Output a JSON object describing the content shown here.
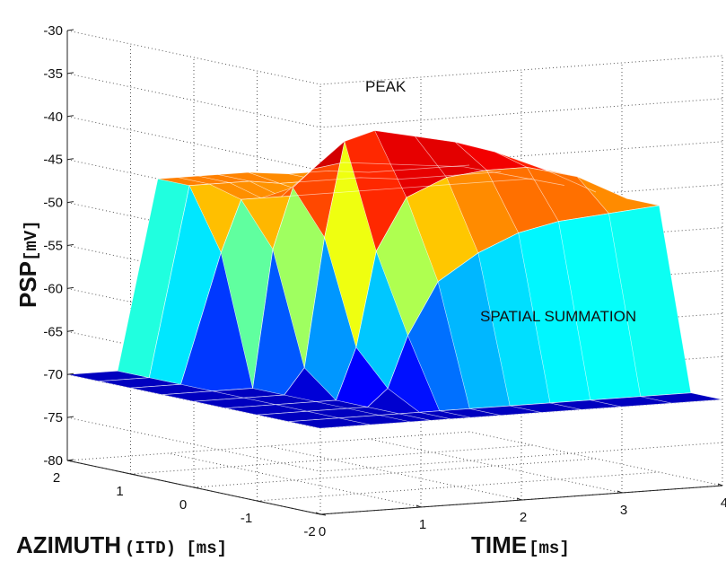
{
  "chart_data": {
    "type": "surface",
    "title": "",
    "xlabel": "TIME",
    "xlabel_unit": "[ms]",
    "ylabel": "AZIMUTH",
    "ylabel_unit": "(ITD) [ms]",
    "zlabel": "PSP",
    "zlabel_unit": "[mV]",
    "xlim": [
      0,
      4
    ],
    "ylim": [
      -2,
      2
    ],
    "zlim": [
      -80,
      -30
    ],
    "x_ticks": [
      "0",
      "1",
      "2",
      "3",
      "4"
    ],
    "y_ticks": [
      "2",
      "1",
      "0",
      "-1",
      "-2"
    ],
    "z_ticks": [
      "-30",
      "-35",
      "-40",
      "-45",
      "-50",
      "-55",
      "-60",
      "-65",
      "-70",
      "-75",
      "-80"
    ],
    "grid": true,
    "colormap": "jet",
    "annotations": [
      "PEAK",
      "SPATIAL SUMMATION"
    ],
    "time_ms": [
      0,
      0.5,
      0.9,
      1.1,
      1.3,
      1.5,
      1.8,
      2.2,
      2.6,
      3.0,
      3.5,
      4.0
    ],
    "azimuth_ms": [
      -2,
      -1.5,
      -1,
      -0.5,
      0,
      0.5,
      1,
      1.5,
      2
    ],
    "psp_mV": [
      [
        -70,
        -70,
        -70,
        -70,
        -70,
        -70,
        -70,
        -70,
        -70,
        -70,
        -70,
        -70
      ],
      [
        -70,
        -70,
        -70,
        -70,
        -70,
        -70,
        -70,
        -70,
        -70,
        -70,
        -70,
        -70
      ],
      [
        -70,
        -70,
        -70,
        -70,
        -68,
        -62,
        -56,
        -53,
        -51,
        -50,
        -49.5,
        -49
      ],
      [
        -70,
        -70,
        -70,
        -70,
        -64,
        -53,
        -47,
        -45,
        -44.5,
        -44.5,
        -46,
        -49
      ],
      [
        -70,
        -70,
        -70,
        -67,
        -52,
        -41,
        -40,
        -41,
        -42,
        -43.5,
        -46,
        -49
      ],
      [
        -70,
        -70,
        -70,
        -54,
        -47,
        -45,
        -44.5,
        -45,
        -45.5,
        -46,
        -47.5,
        -49
      ],
      [
        -70,
        -70,
        -55,
        -49,
        -49,
        -49,
        -49,
        -49,
        -49,
        -49,
        -49,
        -49
      ],
      [
        -70,
        -70,
        -48,
        -48,
        -48,
        -48,
        -48.5,
        -48.5,
        -48.5,
        -49,
        -49,
        -49
      ],
      [
        -70,
        -70,
        -48,
        -48,
        -48,
        -48,
        -48,
        -48.5,
        -48.5,
        -49,
        -49,
        -49
      ]
    ]
  }
}
